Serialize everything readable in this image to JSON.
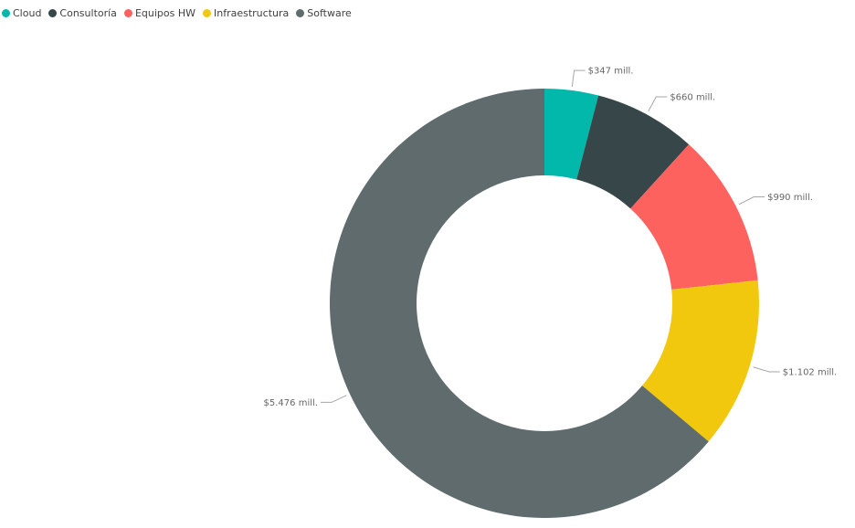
{
  "chart_data": {
    "type": "pie",
    "variant": "donut",
    "legend_position": "top-left",
    "series": [
      {
        "name": "Cloud",
        "value": 347,
        "label": "$347 mill.",
        "color": "#01B8AA"
      },
      {
        "name": "Consultoría",
        "value": 660,
        "label": "$660 mill.",
        "color": "#374649"
      },
      {
        "name": "Equipos HW",
        "value": 990,
        "label": "$990 mill.",
        "color": "#FD625E"
      },
      {
        "name": "Infraestructura",
        "value": 1102,
        "label": "$1.102 mill.",
        "color": "#F2C80F"
      },
      {
        "name": "Software",
        "value": 5476,
        "label": "$5.476 mill.",
        "color": "#5F6B6D"
      }
    ]
  }
}
